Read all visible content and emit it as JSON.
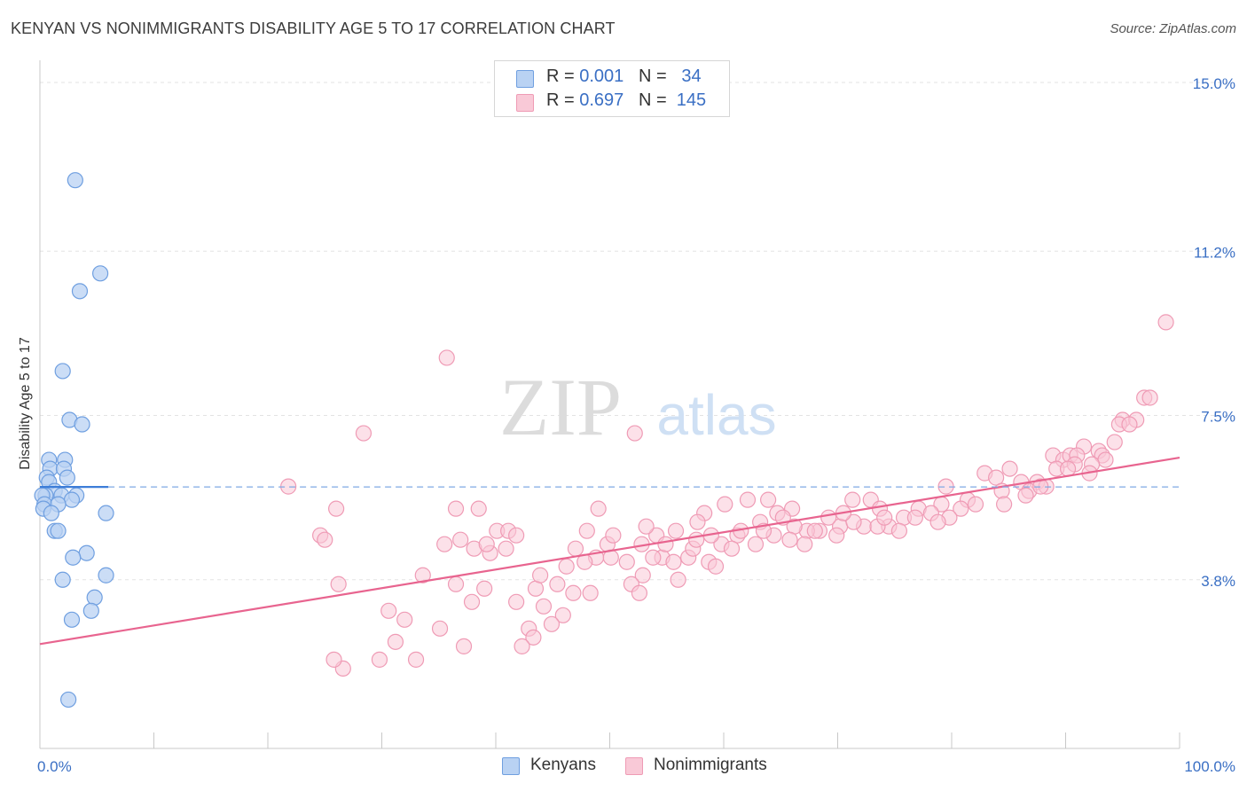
{
  "title": "KENYAN VS NONIMMIGRANTS DISABILITY AGE 5 TO 17 CORRELATION CHART",
  "source": "Source: ZipAtlas.com",
  "watermark": {
    "zip": "ZIP",
    "atlas": "atlas"
  },
  "colors": {
    "kenyan_fill": "#b9d2f3",
    "kenyan_stroke": "#6f9fe0",
    "kenyan_line": "#3d7dd8",
    "nonimm_fill": "#f9c9d7",
    "nonimm_stroke": "#ef9bb5",
    "nonimm_line": "#e8648f",
    "axis_label": "#3a6fc4"
  },
  "legend_top": {
    "kenyans": {
      "r_label": "R =",
      "r_value": "0.001",
      "n_label": "N =",
      "n_value": "34"
    },
    "nonimmigrants": {
      "r_label": "R =",
      "r_value": "0.697",
      "n_label": "N =",
      "n_value": "145"
    }
  },
  "legend_bottom": {
    "kenyans": "Kenyans",
    "nonimmigrants": "Nonimmigrants"
  },
  "chart_data": {
    "type": "scatter",
    "title": "KENYAN VS NONIMMIGRANTS DISABILITY AGE 5 TO 17 CORRELATION CHART",
    "xlabel": "",
    "ylabel": "Disability Age 5 to 17",
    "xlim": [
      0,
      100
    ],
    "ylim": [
      0,
      15.6
    ],
    "x_tick_labels": [
      "0.0%",
      "100.0%"
    ],
    "y_ticks": [
      3.8,
      7.5,
      11.2,
      15.0
    ],
    "y_tick_labels": [
      "3.8%",
      "7.5%",
      "11.2%",
      "15.0%"
    ],
    "grid": true,
    "series": [
      {
        "name": "Kenyans",
        "trend": {
          "x": [
            0,
            6
          ],
          "y": [
            5.89,
            5.89
          ],
          "dashed_extension_to": 100
        },
        "points": [
          [
            3.1,
            12.8
          ],
          [
            5.3,
            10.7
          ],
          [
            3.5,
            10.3
          ],
          [
            2.0,
            8.5
          ],
          [
            2.6,
            7.4
          ],
          [
            3.7,
            7.3
          ],
          [
            0.8,
            6.5
          ],
          [
            2.2,
            6.5
          ],
          [
            0.9,
            6.3
          ],
          [
            2.1,
            6.3
          ],
          [
            0.6,
            6.1
          ],
          [
            2.4,
            6.1
          ],
          [
            0.8,
            6.0
          ],
          [
            1.3,
            5.8
          ],
          [
            0.5,
            5.7
          ],
          [
            0.2,
            5.7
          ],
          [
            1.9,
            5.7
          ],
          [
            3.2,
            5.7
          ],
          [
            2.8,
            5.6
          ],
          [
            0.4,
            5.5
          ],
          [
            1.6,
            5.5
          ],
          [
            0.3,
            5.4
          ],
          [
            1.0,
            5.3
          ],
          [
            5.8,
            5.3
          ],
          [
            1.3,
            4.9
          ],
          [
            1.6,
            4.9
          ],
          [
            4.1,
            4.4
          ],
          [
            2.9,
            4.3
          ],
          [
            5.8,
            3.9
          ],
          [
            2.0,
            3.8
          ],
          [
            4.8,
            3.4
          ],
          [
            4.5,
            3.1
          ],
          [
            2.8,
            2.9
          ],
          [
            2.5,
            1.1
          ]
        ]
      },
      {
        "name": "Nonimmigrants",
        "trend": {
          "x": [
            0,
            100
          ],
          "y": [
            2.35,
            6.55
          ]
        },
        "points": [
          [
            98.8,
            9.6
          ],
          [
            35.7,
            8.8
          ],
          [
            28.4,
            7.1
          ],
          [
            52.2,
            7.1
          ],
          [
            96.9,
            7.9
          ],
          [
            97.4,
            7.9
          ],
          [
            95.0,
            7.4
          ],
          [
            96.2,
            7.4
          ],
          [
            94.7,
            7.3
          ],
          [
            95.6,
            7.3
          ],
          [
            91.6,
            6.8
          ],
          [
            92.9,
            6.7
          ],
          [
            93.2,
            6.6
          ],
          [
            88.9,
            6.6
          ],
          [
            89.8,
            6.5
          ],
          [
            90.4,
            6.6
          ],
          [
            91.0,
            6.6
          ],
          [
            93.5,
            6.5
          ],
          [
            90.8,
            6.4
          ],
          [
            92.3,
            6.4
          ],
          [
            89.2,
            6.3
          ],
          [
            85.1,
            6.3
          ],
          [
            82.9,
            6.2
          ],
          [
            83.9,
            6.1
          ],
          [
            86.1,
            6.0
          ],
          [
            87.5,
            6.0
          ],
          [
            88.3,
            5.9
          ],
          [
            86.8,
            5.8
          ],
          [
            84.4,
            5.8
          ],
          [
            86.5,
            5.7
          ],
          [
            79.5,
            5.9
          ],
          [
            81.4,
            5.6
          ],
          [
            82.1,
            5.5
          ],
          [
            79.1,
            5.5
          ],
          [
            80.8,
            5.4
          ],
          [
            77.1,
            5.4
          ],
          [
            78.2,
            5.3
          ],
          [
            79.8,
            5.2
          ],
          [
            72.9,
            5.6
          ],
          [
            71.3,
            5.6
          ],
          [
            73.7,
            5.4
          ],
          [
            75.8,
            5.2
          ],
          [
            74.5,
            5.0
          ],
          [
            72.3,
            5.0
          ],
          [
            70.2,
            5.0
          ],
          [
            68.4,
            4.9
          ],
          [
            69.9,
            4.8
          ],
          [
            67.3,
            4.9
          ],
          [
            63.9,
            5.6
          ],
          [
            62.1,
            5.6
          ],
          [
            64.7,
            5.3
          ],
          [
            63.2,
            5.1
          ],
          [
            60.1,
            5.5
          ],
          [
            58.3,
            5.3
          ],
          [
            57.7,
            5.1
          ],
          [
            55.8,
            4.9
          ],
          [
            54.1,
            4.8
          ],
          [
            53.2,
            5.0
          ],
          [
            61.2,
            4.8
          ],
          [
            59.8,
            4.6
          ],
          [
            64.4,
            4.8
          ],
          [
            66.2,
            5.0
          ],
          [
            68.0,
            4.9
          ],
          [
            71.4,
            5.1
          ],
          [
            73.5,
            5.0
          ],
          [
            75.4,
            4.9
          ],
          [
            76.8,
            5.2
          ],
          [
            52.8,
            4.6
          ],
          [
            54.6,
            4.3
          ],
          [
            55.6,
            4.2
          ],
          [
            56.9,
            4.3
          ],
          [
            57.3,
            4.5
          ],
          [
            58.7,
            4.2
          ],
          [
            59.3,
            4.1
          ],
          [
            56.0,
            3.8
          ],
          [
            49.8,
            4.6
          ],
          [
            50.3,
            4.8
          ],
          [
            51.5,
            4.2
          ],
          [
            48.8,
            4.3
          ],
          [
            47.0,
            4.5
          ],
          [
            47.8,
            4.2
          ],
          [
            46.2,
            4.1
          ],
          [
            45.4,
            3.7
          ],
          [
            46.8,
            3.5
          ],
          [
            48.3,
            3.5
          ],
          [
            52.9,
            3.9
          ],
          [
            51.9,
            3.7
          ],
          [
            52.6,
            3.5
          ],
          [
            53.8,
            4.3
          ],
          [
            43.5,
            3.6
          ],
          [
            44.2,
            3.2
          ],
          [
            45.9,
            3.0
          ],
          [
            44.9,
            2.8
          ],
          [
            42.9,
            2.7
          ],
          [
            43.3,
            2.5
          ],
          [
            42.3,
            2.3
          ],
          [
            36.5,
            3.7
          ],
          [
            37.9,
            3.3
          ],
          [
            39.5,
            4.4
          ],
          [
            38.1,
            4.5
          ],
          [
            39.2,
            4.6
          ],
          [
            40.1,
            4.9
          ],
          [
            41.1,
            4.9
          ],
          [
            41.8,
            4.8
          ],
          [
            40.9,
            4.5
          ],
          [
            35.5,
            4.6
          ],
          [
            36.9,
            4.7
          ],
          [
            38.5,
            5.4
          ],
          [
            33.6,
            3.9
          ],
          [
            35.1,
            2.7
          ],
          [
            37.2,
            2.3
          ],
          [
            30.6,
            3.1
          ],
          [
            32.0,
            2.9
          ],
          [
            31.2,
            2.4
          ],
          [
            29.8,
            2.0
          ],
          [
            33.0,
            2.0
          ],
          [
            26.6,
            1.8
          ],
          [
            25.8,
            2.0
          ],
          [
            26.2,
            3.7
          ],
          [
            24.6,
            4.8
          ],
          [
            25.0,
            4.7
          ],
          [
            26.0,
            5.4
          ],
          [
            21.8,
            5.9
          ],
          [
            36.5,
            5.4
          ],
          [
            66.0,
            5.4
          ],
          [
            65.2,
            5.2
          ],
          [
            69.2,
            5.2
          ],
          [
            70.5,
            5.3
          ],
          [
            61.5,
            4.9
          ],
          [
            62.8,
            4.6
          ],
          [
            84.6,
            5.5
          ],
          [
            87.8,
            5.9
          ],
          [
            90.2,
            6.3
          ],
          [
            94.3,
            6.9
          ],
          [
            92.1,
            6.2
          ],
          [
            78.8,
            5.1
          ],
          [
            74.1,
            5.2
          ],
          [
            67.1,
            4.6
          ],
          [
            65.8,
            4.7
          ],
          [
            63.5,
            4.9
          ],
          [
            60.7,
            4.5
          ],
          [
            58.9,
            4.8
          ],
          [
            57.6,
            4.7
          ],
          [
            54.9,
            4.6
          ],
          [
            50.1,
            4.3
          ],
          [
            49.0,
            5.4
          ],
          [
            48.0,
            4.9
          ],
          [
            43.9,
            3.9
          ],
          [
            41.8,
            3.3
          ],
          [
            39.0,
            3.6
          ]
        ]
      }
    ]
  }
}
